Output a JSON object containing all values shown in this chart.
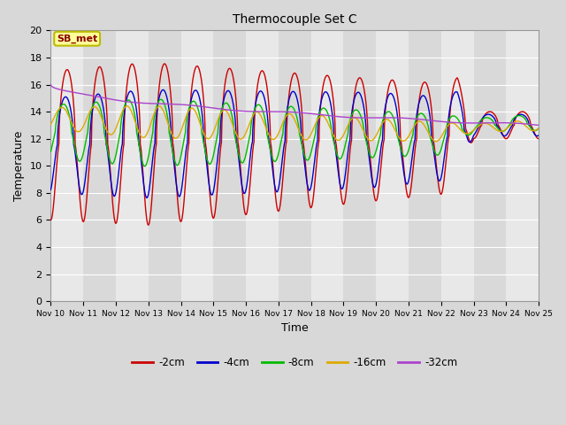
{
  "title": "Thermocouple Set C",
  "xlabel": "Time",
  "ylabel": "Temperature",
  "ylim": [
    0,
    20
  ],
  "xlim": [
    0,
    15
  ],
  "outer_bg": "#d8d8d8",
  "plot_bg_light": "#e8e8e8",
  "plot_bg_dark": "#d0d0d0",
  "grid_color": "#ffffff",
  "colors": {
    "-2cm": "#cc0000",
    "-4cm": "#0000cc",
    "-8cm": "#00bb00",
    "-16cm": "#ddaa00",
    "-32cm": "#aa44cc"
  },
  "annotation_text": "SB_met",
  "x_tick_labels": [
    "Nov 10",
    "Nov 11",
    "Nov 12",
    "Nov 13",
    "Nov 14",
    "Nov 15",
    "Nov 16",
    "Nov 17",
    "Nov 18",
    "Nov 19",
    "Nov 20",
    "Nov 21",
    "Nov 22",
    "Nov 23",
    "Nov 24",
    "Nov 25"
  ]
}
